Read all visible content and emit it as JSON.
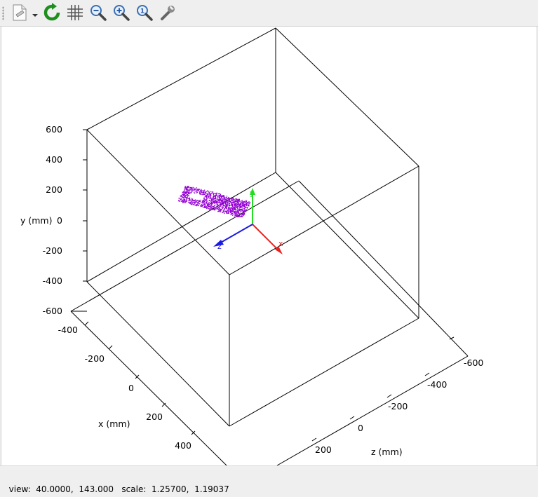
{
  "toolbar": {
    "buttons": [
      {
        "name": "export-button",
        "icon": "export-document-icon"
      },
      {
        "name": "export-menu-button",
        "icon": "dropdown-arrow-icon"
      },
      {
        "name": "replot-button",
        "icon": "refresh-icon"
      },
      {
        "name": "grid-button",
        "icon": "grid-icon"
      },
      {
        "name": "zoom-previous-button",
        "icon": "zoom-out-icon"
      },
      {
        "name": "zoom-next-button",
        "icon": "zoom-in-icon"
      },
      {
        "name": "unzoom-button",
        "icon": "zoom-reset-icon"
      },
      {
        "name": "settings-button",
        "icon": "wrench-icon"
      }
    ]
  },
  "plot": {
    "y_axis_label": "y (mm)",
    "x_axis_label": "x (mm)",
    "z_axis_label": "z (mm)",
    "y_ticks": [
      "600",
      "400",
      "200",
      "0",
      "-200",
      "-400",
      "-600"
    ],
    "x_ticks": [
      "-400",
      "-200",
      "0",
      "200",
      "400"
    ],
    "z_ticks": [
      "-600",
      "-400",
      "-200",
      "0",
      "200"
    ],
    "gizmo": {
      "x_label": "x",
      "y_label": "y",
      "z_label": "z",
      "x_color": "#e8231f",
      "y_color": "#22dd22",
      "z_color": "#1c1ce0"
    },
    "point_cloud_color": "#9400d3"
  },
  "status": {
    "text": "view:  40.0000,  143.000   scale:  1.25700,  1.19037"
  }
}
